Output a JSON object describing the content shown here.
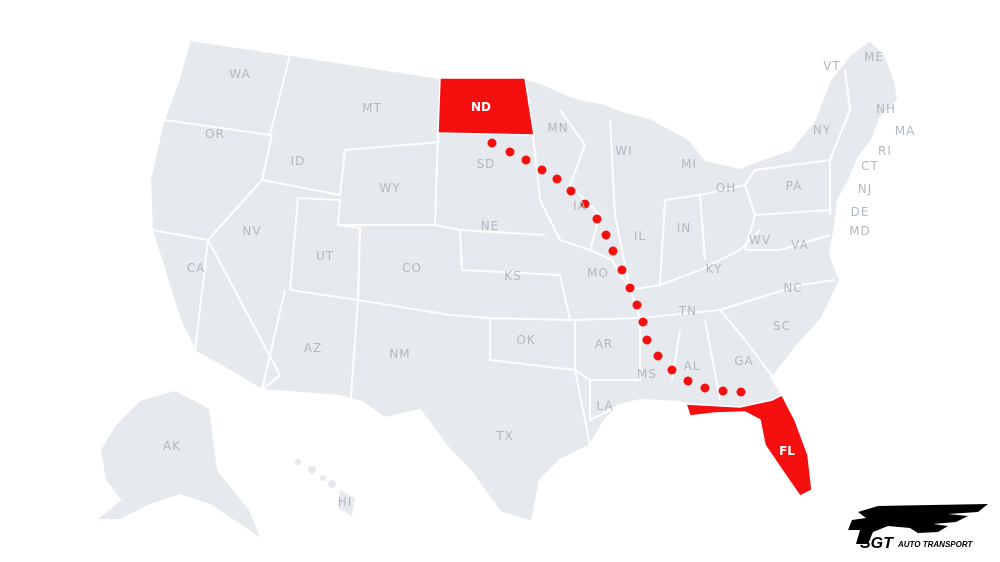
{
  "map": {
    "land_color": "#e6e9ed",
    "border_color": "#ffffff",
    "label_color": "#b3b8bf",
    "highlight_color": "#f50f0f",
    "origin_state": "ND",
    "destination_state": "FL",
    "route_style": "dotted",
    "state_labels": [
      "WA",
      "OR",
      "CA",
      "ID",
      "NV",
      "MT",
      "WY",
      "UT",
      "AZ",
      "CO",
      "NM",
      "ND",
      "SD",
      "NE",
      "KS",
      "OK",
      "TX",
      "MN",
      "IA",
      "MO",
      "AR",
      "LA",
      "WI",
      "IL",
      "MS",
      "MI",
      "IN",
      "KY",
      "TN",
      "AL",
      "GA",
      "FL",
      "OH",
      "WV",
      "VA",
      "NC",
      "SC",
      "PA",
      "NY",
      "VT",
      "ME",
      "NH",
      "MA",
      "RI",
      "CT",
      "NJ",
      "DE",
      "MD",
      "AK",
      "HI"
    ]
  },
  "logo": {
    "brand": "SGT",
    "tagline": "AUTO TRANSPORT"
  }
}
